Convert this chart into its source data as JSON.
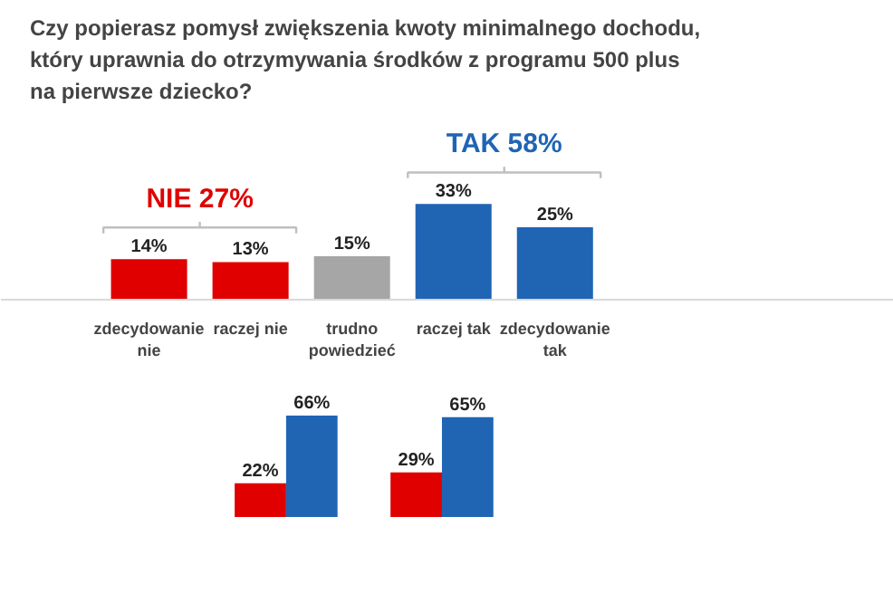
{
  "chart_data": [
    {
      "type": "bar",
      "title": "Czy popierasz pomysł zwiększenia kwoty minimalnego dochodu, który uprawnia do otrzymywania środków z programu 500 plus na pierwsze dziecko?",
      "categories": [
        "zdecydowanie nie",
        "raczej nie",
        "trudno powiedzieć",
        "raczej tak",
        "zdecydowanie tak"
      ],
      "values": [
        14,
        13,
        15,
        33,
        25
      ],
      "value_labels": [
        "14%",
        "13%",
        "15%",
        "33%",
        "25%"
      ],
      "colors": [
        "#e00000",
        "#e00000",
        "#a6a6a6",
        "#1f65b4",
        "#1f65b4"
      ],
      "annotations": [
        "NIE 27%",
        "TAK 58%"
      ]
    },
    {
      "type": "bar",
      "categories": [
        null,
        null
      ],
      "series": [
        {
          "color": "#e00000",
          "values": [
            22,
            29
          ],
          "value_labels": [
            "22%",
            "29%"
          ]
        },
        {
          "color": "#1f65b4",
          "values": [
            66,
            65
          ],
          "value_labels": [
            "66%",
            "65%"
          ]
        }
      ]
    }
  ]
}
